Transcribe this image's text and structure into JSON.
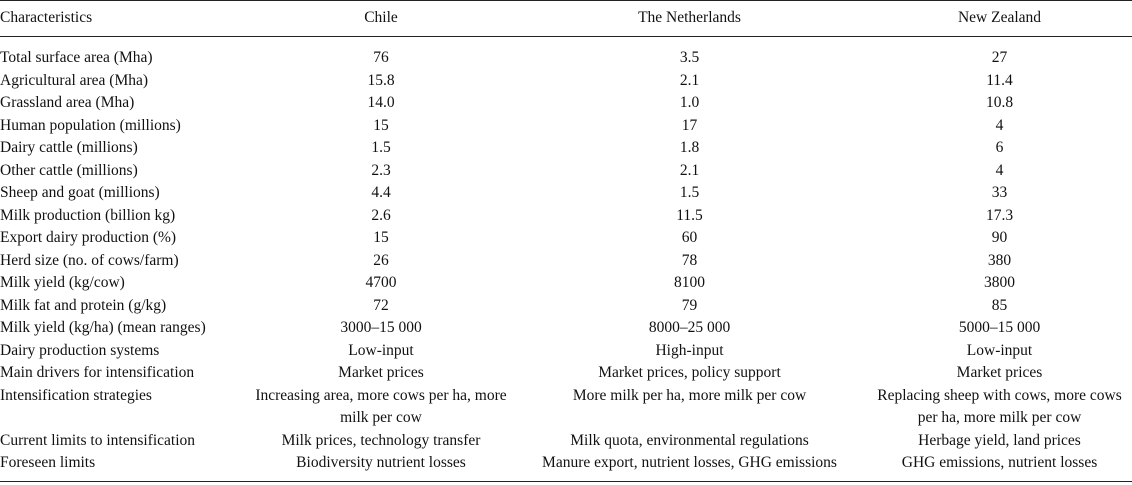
{
  "header": {
    "characteristics": "Characteristics",
    "chile": "Chile",
    "netherlands": "The Netherlands",
    "new_zealand": "New Zealand"
  },
  "rows": [
    {
      "label": "Total surface area (Mha)",
      "chile": "76",
      "nl": "3.5",
      "nz": "27"
    },
    {
      "label": "Agricultural area (Mha)",
      "chile": "15.8",
      "nl": "2.1",
      "nz": "11.4"
    },
    {
      "label": "Grassland area (Mha)",
      "chile": "14.0",
      "nl": "1.0",
      "nz": "10.8"
    },
    {
      "label": "Human population (millions)",
      "chile": "15",
      "nl": "17",
      "nz": "4"
    },
    {
      "label": "Dairy cattle (millions)",
      "chile": "1.5",
      "nl": "1.8",
      "nz": "6"
    },
    {
      "label": "Other cattle (millions)",
      "chile": "2.3",
      "nl": "2.1",
      "nz": "4"
    },
    {
      "label": "Sheep and goat (millions)",
      "chile": "4.4",
      "nl": "1.5",
      "nz": "33"
    },
    {
      "label": "Milk production (billion kg)",
      "chile": "2.6",
      "nl": "11.5",
      "nz": "17.3"
    },
    {
      "label": "Export dairy production (%)",
      "chile": "15",
      "nl": "60",
      "nz": "90"
    },
    {
      "label": "Herd size (no. of cows/farm)",
      "chile": "26",
      "nl": "78",
      "nz": "380"
    },
    {
      "label": "Milk yield (kg/cow)",
      "chile": "4700",
      "nl": "8100",
      "nz": "3800"
    },
    {
      "label": "Milk fat and protein (g/kg)",
      "chile": "72",
      "nl": "79",
      "nz": "85"
    },
    {
      "label": "Milk yield (kg/ha) (mean ranges)",
      "chile": "3000–15 000",
      "nl": "8000–25 000",
      "nz": "5000–15 000"
    },
    {
      "label": "Dairy production systems",
      "chile": "Low-input",
      "nl": "High-input",
      "nz": "Low-input"
    },
    {
      "label": "Main drivers for intensification",
      "chile": "Market prices",
      "nl": "Market prices, policy support",
      "nz": "Market prices"
    },
    {
      "label": "Intensification strategies",
      "chile": "Increasing area, more cows per ha, more milk per cow",
      "nl": "More milk per ha, more milk per cow",
      "nz": "Replacing sheep with cows, more cows per ha, more milk per cow"
    },
    {
      "label": "Current limits to intensification",
      "chile": "Milk prices, technology transfer",
      "nl": "Milk quota, environmental regulations",
      "nz": "Herbage yield, land prices"
    },
    {
      "label": "Foreseen limits",
      "chile": "Biodiversity nutrient losses",
      "nl": "Manure export, nutrient losses, GHG emissions",
      "nz": "GHG emissions, nutrient losses"
    }
  ]
}
